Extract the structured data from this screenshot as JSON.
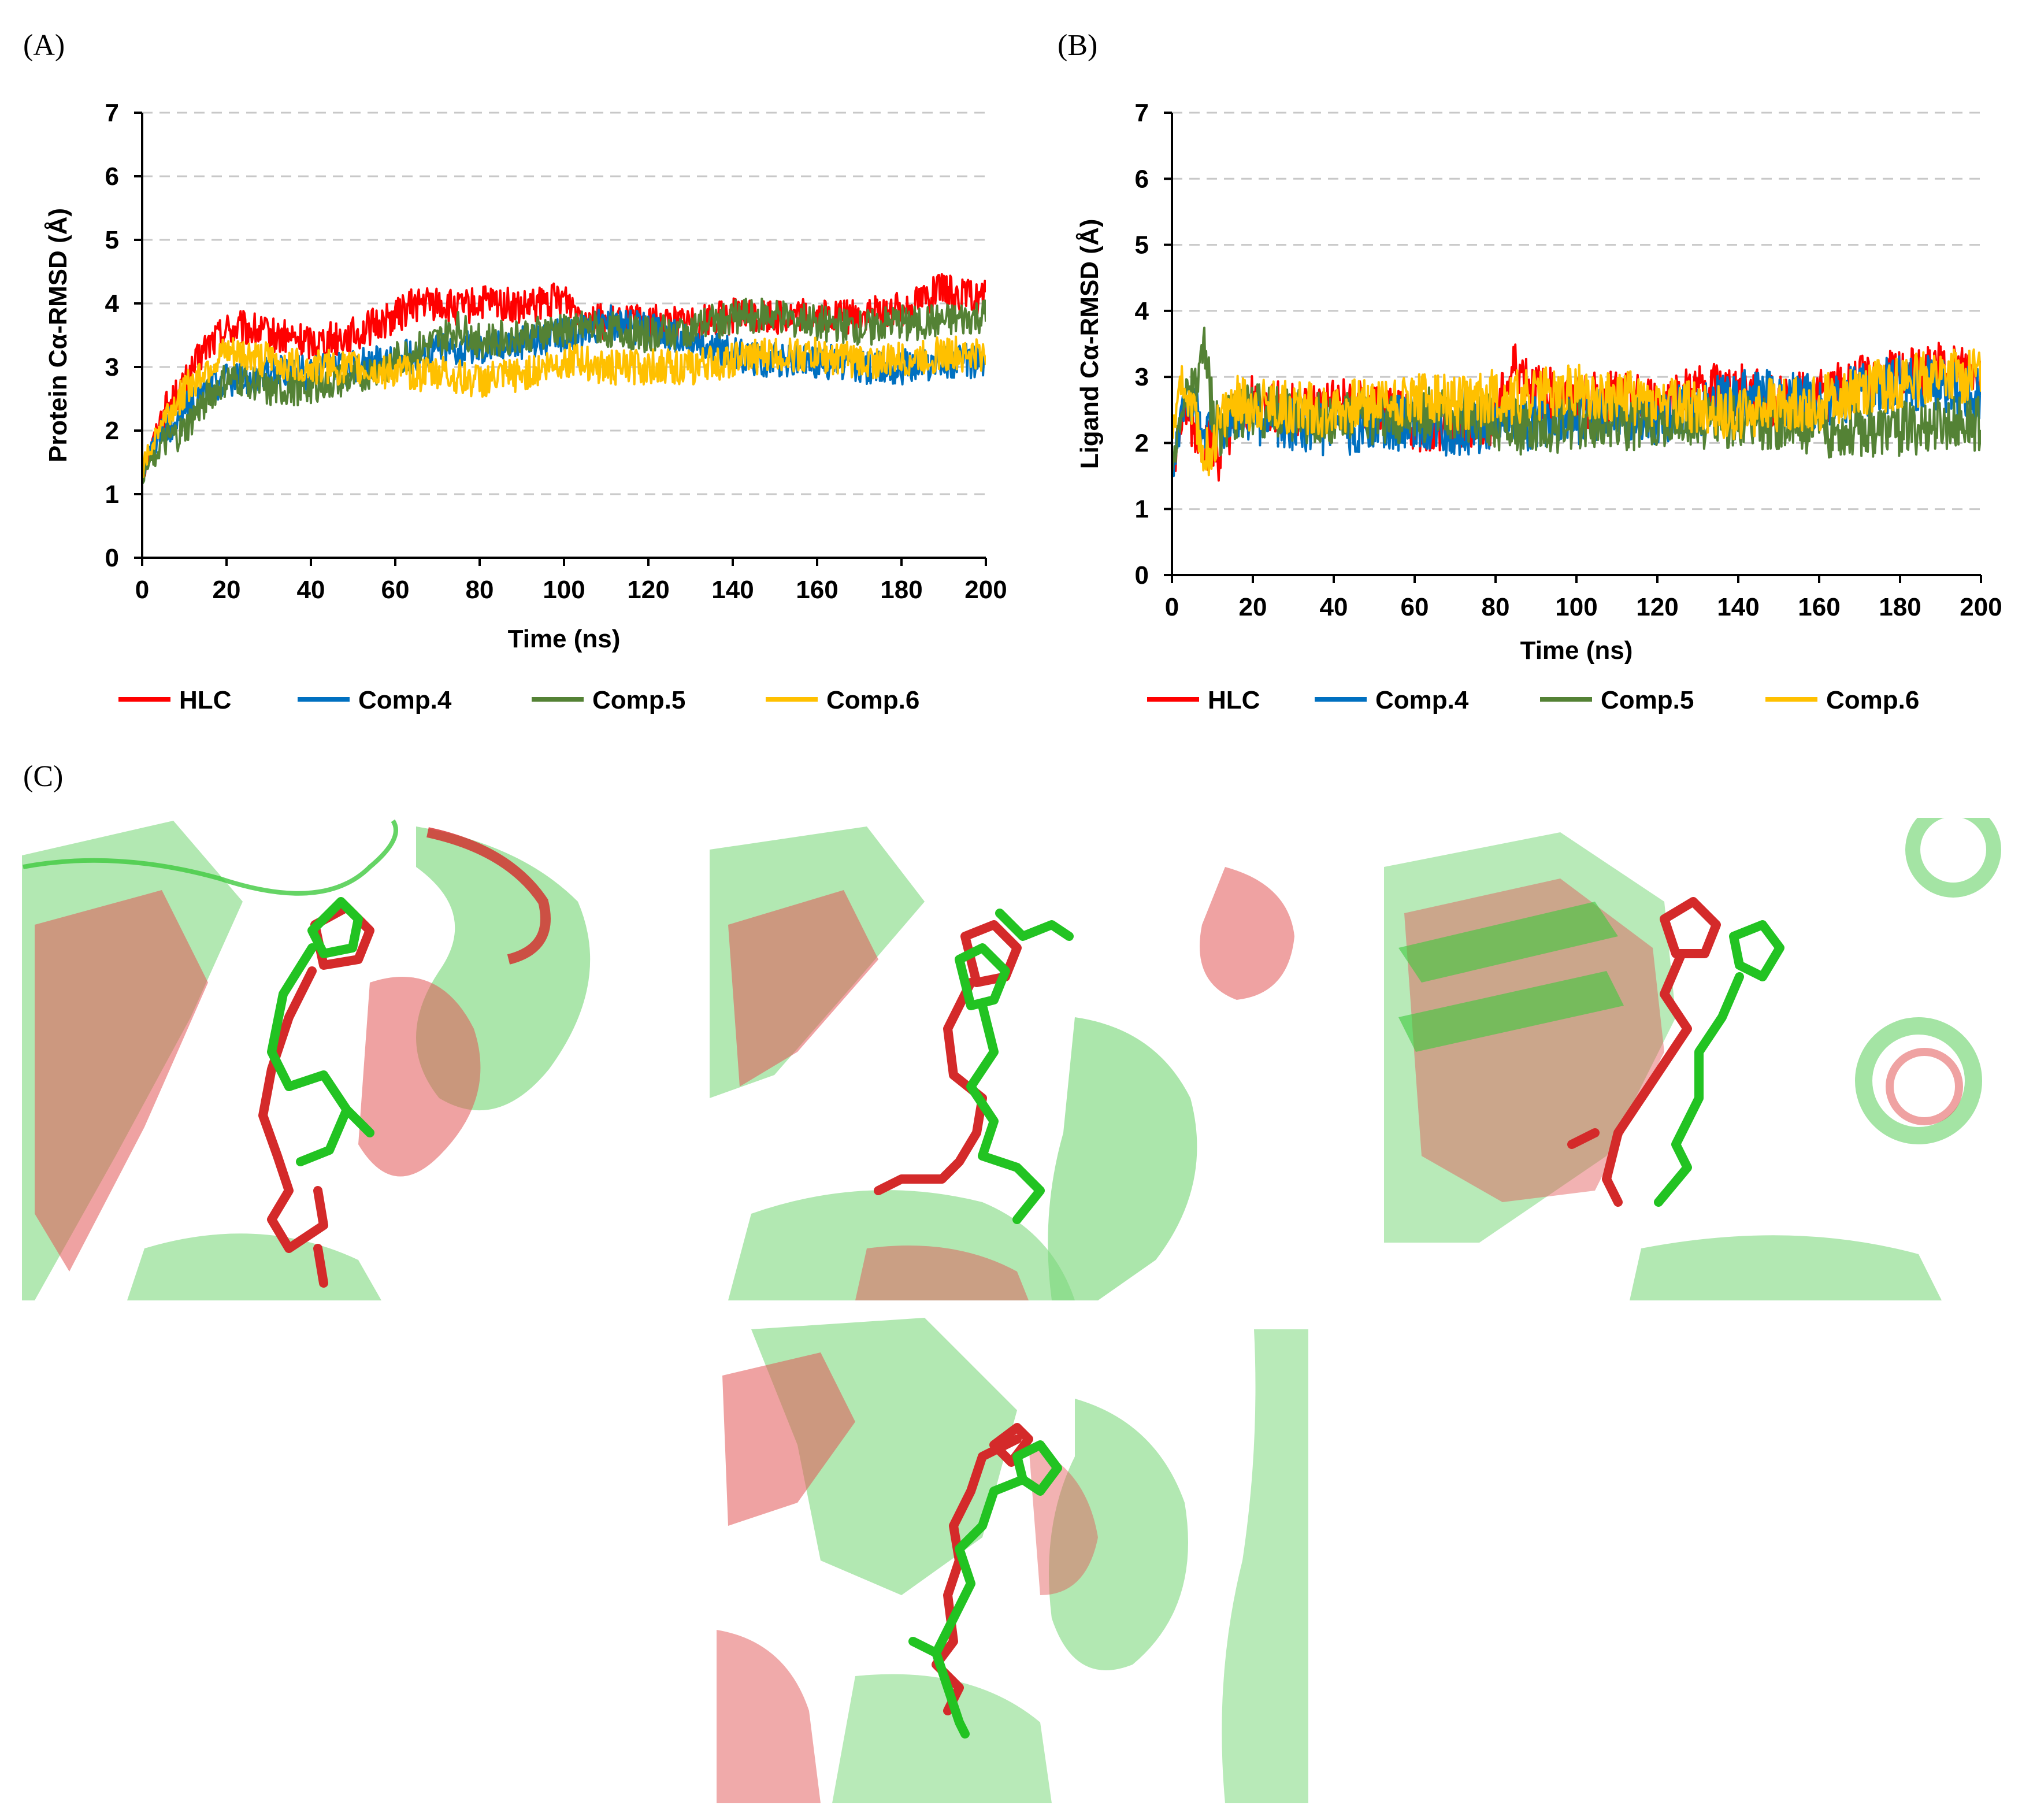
{
  "panels": {
    "a_label": "(A)",
    "b_label": "(B)",
    "c_label": "(C)"
  },
  "colors": {
    "HLC": "#ff0000",
    "Comp.4": "#0070c0",
    "Comp.5": "#548235",
    "Comp.6": "#ffc000",
    "protein_ref": "#3ec93e",
    "protein_alt": "#d42a2a"
  },
  "chart_data": [
    {
      "id": "A",
      "type": "line",
      "title": "",
      "xlabel": "Time (ns)",
      "ylabel": "Protein Cα-RMSD (Å)",
      "xlim": [
        0,
        200
      ],
      "ylim": [
        0,
        7
      ],
      "xticks": [
        0,
        20,
        40,
        60,
        80,
        100,
        120,
        140,
        160,
        180,
        200
      ],
      "yticks": [
        0,
        1,
        2,
        3,
        4,
        5,
        6,
        7
      ],
      "grid": "horizontal dashed",
      "legend": "bottom",
      "series": [
        {
          "name": "HLC",
          "x": [
            0,
            5,
            10,
            15,
            20,
            25,
            30,
            40,
            50,
            60,
            65,
            70,
            75,
            80,
            85,
            90,
            95,
            100,
            105,
            110,
            120,
            130,
            140,
            150,
            160,
            170,
            180,
            185,
            190,
            195,
            200
          ],
          "y": [
            1.3,
            2.3,
            2.7,
            3.3,
            3.6,
            3.6,
            3.5,
            3.4,
            3.5,
            3.8,
            4.0,
            4.0,
            3.9,
            4.0,
            4.0,
            3.9,
            4.0,
            4.1,
            3.8,
            3.7,
            3.7,
            3.7,
            3.8,
            3.8,
            3.8,
            3.8,
            3.9,
            4.1,
            4.2,
            4.1,
            4.1
          ]
        },
        {
          "name": "Comp.4",
          "x": [
            0,
            5,
            10,
            15,
            20,
            25,
            30,
            40,
            50,
            60,
            70,
            80,
            90,
            100,
            110,
            120,
            130,
            140,
            150,
            160,
            170,
            180,
            190,
            200
          ],
          "y": [
            1.4,
            2.0,
            2.3,
            2.6,
            2.8,
            2.8,
            2.9,
            2.9,
            3.0,
            3.1,
            3.3,
            3.3,
            3.4,
            3.5,
            3.7,
            3.6,
            3.4,
            3.2,
            3.1,
            3.1,
            3.0,
            3.0,
            3.1,
            3.1
          ]
        },
        {
          "name": "Comp.5",
          "x": [
            0,
            5,
            10,
            15,
            20,
            25,
            30,
            40,
            50,
            60,
            70,
            75,
            80,
            90,
            100,
            110,
            120,
            130,
            140,
            150,
            160,
            170,
            180,
            190,
            200
          ],
          "y": [
            1.3,
            1.8,
            2.0,
            2.5,
            2.8,
            2.8,
            2.6,
            2.7,
            2.8,
            3.1,
            3.4,
            3.6,
            3.4,
            3.5,
            3.6,
            3.6,
            3.5,
            3.6,
            3.8,
            3.8,
            3.7,
            3.6,
            3.7,
            3.7,
            3.8
          ]
        },
        {
          "name": "Comp.6",
          "x": [
            0,
            5,
            10,
            15,
            20,
            25,
            30,
            40,
            50,
            60,
            70,
            80,
            90,
            100,
            110,
            120,
            130,
            140,
            150,
            160,
            170,
            180,
            190,
            200
          ],
          "y": [
            1.4,
            2.2,
            2.6,
            3.0,
            3.2,
            3.2,
            3.1,
            3.0,
            3.0,
            2.9,
            2.9,
            2.8,
            2.9,
            3.1,
            3.0,
            3.0,
            3.0,
            3.1,
            3.2,
            3.2,
            3.1,
            3.1,
            3.2,
            3.2
          ]
        }
      ]
    },
    {
      "id": "B",
      "type": "line",
      "title": "",
      "xlabel": "Time (ns)",
      "ylabel": "Ligand Cα-RMSD (Å)",
      "xlim": [
        0,
        200
      ],
      "ylim": [
        0,
        7
      ],
      "xticks": [
        0,
        20,
        40,
        60,
        80,
        100,
        120,
        140,
        160,
        180,
        200
      ],
      "yticks": [
        0,
        1,
        2,
        3,
        4,
        5,
        6,
        7
      ],
      "grid": "horizontal dashed",
      "legend": "bottom",
      "series": [
        {
          "name": "HLC",
          "x": [
            0,
            3,
            6,
            9,
            12,
            15,
            20,
            30,
            40,
            50,
            60,
            70,
            80,
            85,
            90,
            100,
            110,
            120,
            130,
            140,
            150,
            160,
            170,
            180,
            190,
            200
          ],
          "y": [
            1.5,
            2.5,
            2.2,
            2.0,
            1.8,
            2.4,
            2.6,
            2.5,
            2.6,
            2.5,
            2.3,
            2.2,
            2.4,
            3.2,
            2.8,
            2.6,
            2.7,
            2.6,
            2.8,
            2.8,
            2.6,
            2.7,
            2.9,
            3.0,
            3.1,
            3.1
          ]
        },
        {
          "name": "Comp.4",
          "x": [
            0,
            3,
            6,
            9,
            12,
            15,
            20,
            30,
            40,
            50,
            60,
            70,
            80,
            90,
            100,
            110,
            120,
            130,
            140,
            150,
            160,
            170,
            180,
            190,
            200
          ],
          "y": [
            1.6,
            2.6,
            2.4,
            2.1,
            2.2,
            2.4,
            2.4,
            2.3,
            2.2,
            2.3,
            2.3,
            2.2,
            2.3,
            2.3,
            2.4,
            2.4,
            2.4,
            2.5,
            2.7,
            2.7,
            2.6,
            2.8,
            2.9,
            2.9,
            2.7
          ]
        },
        {
          "name": "Comp.5",
          "x": [
            0,
            3,
            6,
            8,
            10,
            12,
            15,
            20,
            30,
            40,
            50,
            60,
            70,
            80,
            90,
            100,
            110,
            120,
            130,
            140,
            150,
            160,
            170,
            180,
            190,
            200
          ],
          "y": [
            1.6,
            2.7,
            2.8,
            3.4,
            2.5,
            2.2,
            2.4,
            2.5,
            2.4,
            2.4,
            2.4,
            2.4,
            2.5,
            2.3,
            2.2,
            2.3,
            2.3,
            2.3,
            2.3,
            2.3,
            2.3,
            2.2,
            2.2,
            2.2,
            2.3,
            2.3
          ]
        },
        {
          "name": "Comp.6",
          "x": [
            0,
            2,
            5,
            8,
            10,
            12,
            15,
            20,
            30,
            40,
            50,
            60,
            70,
            80,
            90,
            100,
            110,
            120,
            130,
            140,
            150,
            160,
            170,
            180,
            190,
            200
          ],
          "y": [
            2.0,
            3.0,
            2.4,
            1.8,
            2.0,
            2.3,
            2.6,
            2.6,
            2.5,
            2.5,
            2.6,
            2.7,
            2.6,
            2.7,
            2.7,
            2.8,
            2.7,
            2.6,
            2.5,
            2.4,
            2.6,
            2.6,
            2.8,
            2.9,
            3.0,
            3.0
          ]
        }
      ]
    }
  ]
}
